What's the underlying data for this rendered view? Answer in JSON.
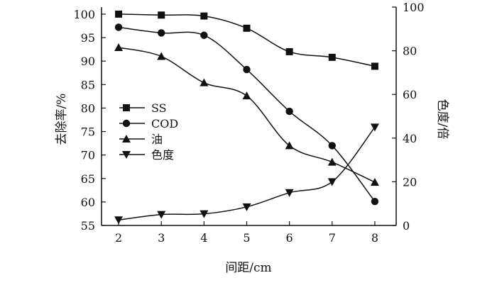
{
  "chart_data": {
    "type": "line",
    "x": [
      2,
      3,
      4,
      5,
      6,
      7,
      8
    ],
    "xlabel": "间距/cm",
    "ylabel_left": "去除率/%",
    "ylabel_right": "色度/倍",
    "xlim": [
      1.6,
      8.5
    ],
    "ylim_left": [
      55,
      101.5
    ],
    "ylim_right": [
      0,
      100
    ],
    "yticks_left": [
      55,
      60,
      65,
      70,
      75,
      80,
      85,
      90,
      95,
      100
    ],
    "yticks_right": [
      0,
      20,
      40,
      60,
      80,
      100
    ],
    "grid": false,
    "legend_position": "center-left",
    "series": [
      {
        "name": "SS",
        "axis": "left",
        "marker": "square",
        "values": [
          100,
          99.8,
          99.6,
          97,
          92,
          90.8,
          88.9
        ]
      },
      {
        "name": "COD",
        "axis": "left",
        "marker": "circle",
        "values": [
          97.2,
          96,
          95.5,
          88.2,
          79.3,
          72,
          60.1
        ]
      },
      {
        "name": "油",
        "axis": "left",
        "marker": "triangle-up",
        "values": [
          92.9,
          91,
          85.4,
          82.6,
          72,
          68.5,
          64.2
        ]
      },
      {
        "name": "色度",
        "axis": "right",
        "marker": "triangle-down",
        "values": [
          2.5,
          5,
          5.3,
          8.5,
          15,
          20,
          45
        ]
      }
    ]
  }
}
